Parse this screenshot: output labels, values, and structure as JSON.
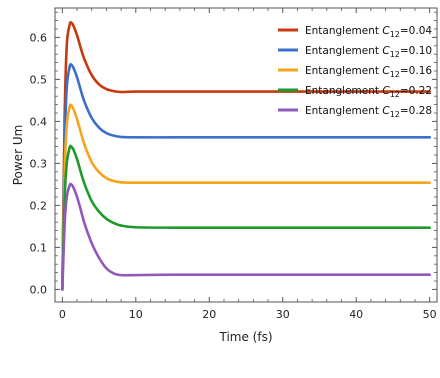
{
  "chart_data": {
    "type": "line",
    "title": "",
    "xlabel": "Time (fs)",
    "ylabel": "Power Um",
    "xlim": [
      -1,
      51
    ],
    "ylim": [
      -0.03,
      0.67
    ],
    "xticks": [
      0,
      10,
      20,
      30,
      40,
      50
    ],
    "xtick_labels": [
      "0",
      "10",
      "20",
      "30",
      "40",
      "50"
    ],
    "yticks": [
      0.0,
      0.1,
      0.2,
      0.3,
      0.4,
      0.5,
      0.6
    ],
    "ytick_labels": [
      "0.0",
      "0.1",
      "0.2",
      "0.3",
      "0.4",
      "0.5",
      "0.6"
    ],
    "grid": false,
    "legend_position": "top-right",
    "series": [
      {
        "legend_prefix": "Entanglement ",
        "legend_var": "C",
        "legend_sub": "12",
        "legend_value": "=0.04",
        "color": "#c63a0f",
        "x": [
          0,
          0.3,
          0.6,
          1.0,
          1.2,
          1.5,
          2,
          2.5,
          3,
          4,
          5,
          6,
          7,
          8,
          10,
          15,
          20,
          30,
          40,
          50
        ],
        "y": [
          0.0,
          0.4,
          0.58,
          0.63,
          0.635,
          0.628,
          0.605,
          0.575,
          0.548,
          0.51,
          0.488,
          0.477,
          0.472,
          0.47,
          0.471,
          0.471,
          0.471,
          0.471,
          0.471,
          0.471
        ]
      },
      {
        "legend_prefix": "Entanglement ",
        "legend_var": "C",
        "legend_sub": "12",
        "legend_value": "=0.10",
        "color": "#3b6fcc",
        "x": [
          0,
          0.3,
          0.6,
          1.0,
          1.2,
          1.5,
          2,
          2.5,
          3,
          4,
          5,
          6,
          7,
          8,
          10,
          15,
          20,
          30,
          40,
          50
        ],
        "y": [
          0.0,
          0.33,
          0.48,
          0.53,
          0.535,
          0.528,
          0.505,
          0.475,
          0.447,
          0.408,
          0.385,
          0.372,
          0.366,
          0.363,
          0.362,
          0.362,
          0.362,
          0.362,
          0.362,
          0.362
        ]
      },
      {
        "legend_prefix": "Entanglement ",
        "legend_var": "C",
        "legend_sub": "12",
        "legend_value": "=0.16",
        "color": "#f5a41b",
        "x": [
          0,
          0.3,
          0.6,
          1.0,
          1.2,
          1.5,
          2,
          2.5,
          3,
          4,
          5,
          6,
          7,
          8,
          10,
          15,
          20,
          30,
          40,
          50
        ],
        "y": [
          0.0,
          0.27,
          0.39,
          0.435,
          0.438,
          0.43,
          0.405,
          0.375,
          0.345,
          0.303,
          0.279,
          0.265,
          0.258,
          0.255,
          0.254,
          0.254,
          0.254,
          0.254,
          0.254,
          0.254
        ]
      },
      {
        "legend_prefix": "Entanglement ",
        "legend_var": "C",
        "legend_sub": "12",
        "legend_value": "=0.22",
        "color": "#1e9a2c",
        "x": [
          0,
          0.3,
          0.6,
          1.0,
          1.2,
          1.5,
          2,
          2.5,
          3,
          4,
          5,
          6,
          7,
          8,
          10,
          15,
          20,
          30,
          40,
          50
        ],
        "y": [
          0.0,
          0.21,
          0.3,
          0.338,
          0.34,
          0.333,
          0.31,
          0.28,
          0.252,
          0.21,
          0.185,
          0.168,
          0.158,
          0.152,
          0.148,
          0.147,
          0.147,
          0.147,
          0.147,
          0.147
        ]
      },
      {
        "legend_prefix": "Entanglement ",
        "legend_var": "C",
        "legend_sub": "12",
        "legend_value": "=0.28",
        "color": "#9159bb",
        "x": [
          0,
          0.3,
          0.6,
          1.0,
          1.2,
          1.5,
          2,
          2.5,
          3,
          4,
          5,
          6,
          7,
          8,
          10,
          15,
          20,
          30,
          40,
          50
        ],
        "y": [
          0.0,
          0.15,
          0.22,
          0.248,
          0.25,
          0.243,
          0.22,
          0.19,
          0.158,
          0.11,
          0.075,
          0.05,
          0.038,
          0.034,
          0.034,
          0.035,
          0.035,
          0.035,
          0.035,
          0.035
        ]
      }
    ]
  }
}
